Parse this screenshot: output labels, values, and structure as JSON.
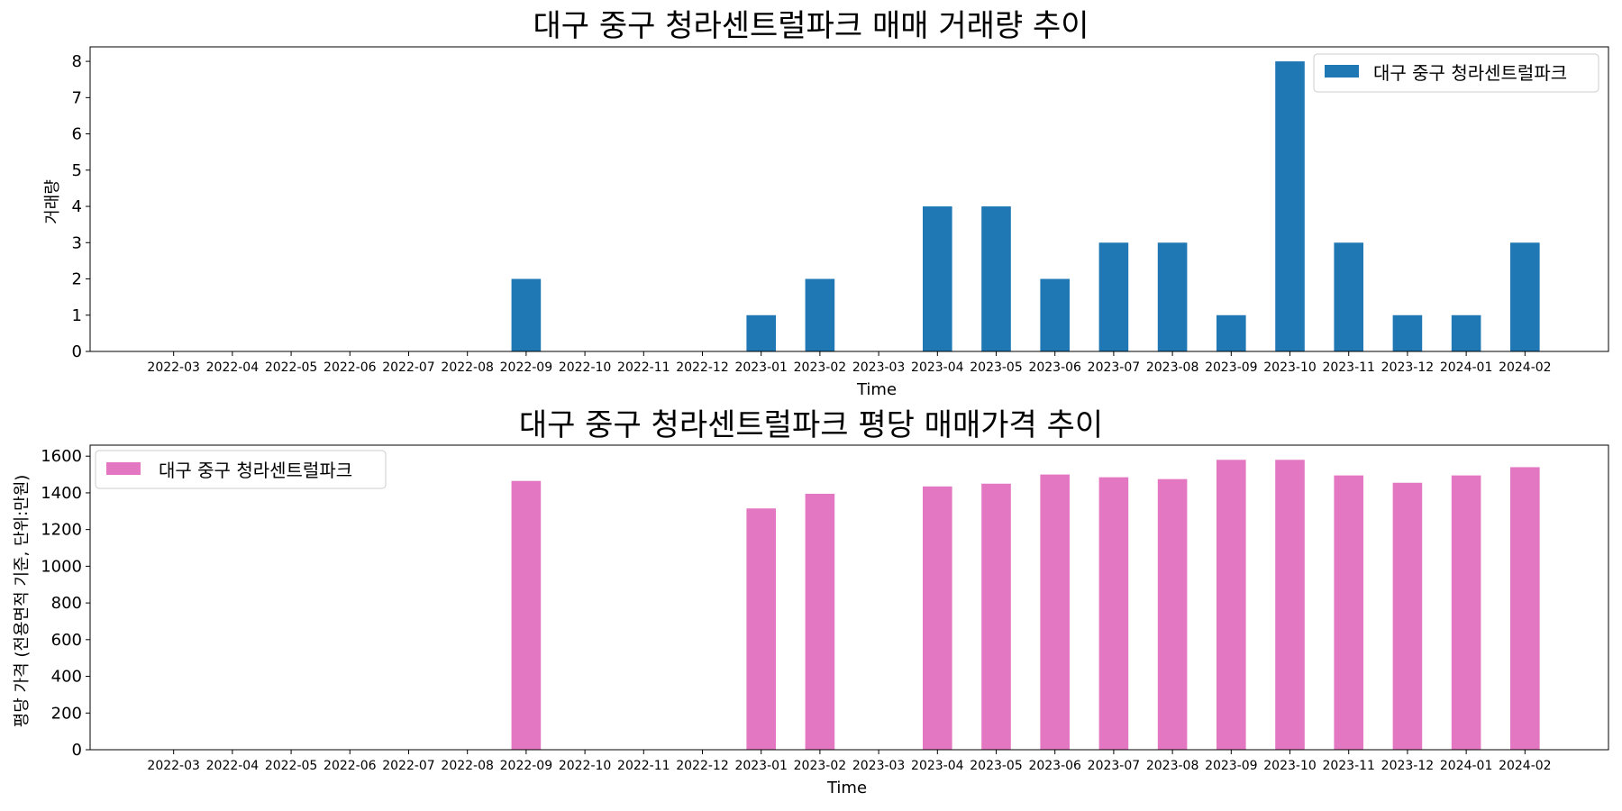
{
  "colors": {
    "volume_bar": "#1f77b4",
    "price_bar": "#e377c2",
    "axes": "#000000",
    "legend_frame": "#cccccc"
  },
  "chart_data": [
    {
      "type": "bar",
      "title": "대구 중구 청라센트럴파크 매매 거래량 추이",
      "xlabel": "Time",
      "ylabel": "거래량",
      "categories": [
        "2022-03",
        "2022-04",
        "2022-05",
        "2022-06",
        "2022-07",
        "2022-08",
        "2022-09",
        "2022-10",
        "2022-11",
        "2022-12",
        "2023-01",
        "2023-02",
        "2023-03",
        "2023-04",
        "2023-05",
        "2023-06",
        "2023-07",
        "2023-08",
        "2023-09",
        "2023-10",
        "2023-11",
        "2023-12",
        "2024-01",
        "2024-02"
      ],
      "series": [
        {
          "name": "대구 중구 청라센트럴파크",
          "values": [
            0,
            0,
            0,
            0,
            0,
            0,
            2,
            0,
            0,
            0,
            1,
            2,
            0,
            4,
            4,
            2,
            3,
            3,
            1,
            8,
            3,
            1,
            1,
            3
          ]
        }
      ],
      "ylim": [
        0,
        8.4
      ],
      "yticks": [
        0,
        1,
        2,
        3,
        4,
        5,
        6,
        7,
        8
      ],
      "legend": "top-right",
      "grid": false
    },
    {
      "type": "bar",
      "title": "대구 중구 청라센트럴파크 평당 매매가격 추이",
      "xlabel": "Time",
      "ylabel": "평당 가격 (전용면적 기준, 단위:만원)",
      "categories": [
        "2022-03",
        "2022-04",
        "2022-05",
        "2022-06",
        "2022-07",
        "2022-08",
        "2022-09",
        "2022-10",
        "2022-11",
        "2022-12",
        "2023-01",
        "2023-02",
        "2023-03",
        "2023-04",
        "2023-05",
        "2023-06",
        "2023-07",
        "2023-08",
        "2023-09",
        "2023-10",
        "2023-11",
        "2023-12",
        "2024-01",
        "2024-02"
      ],
      "series": [
        {
          "name": "대구 중구 청라센트럴파크",
          "values": [
            0,
            0,
            0,
            0,
            0,
            0,
            1465,
            0,
            0,
            0,
            1315,
            1395,
            0,
            1435,
            1450,
            1500,
            1485,
            1475,
            1580,
            1580,
            1495,
            1455,
            1495,
            1540
          ]
        }
      ],
      "ylim": [
        0,
        1660
      ],
      "yticks": [
        0,
        200,
        400,
        600,
        800,
        1000,
        1200,
        1400,
        1600
      ],
      "legend": "top-left",
      "grid": false
    }
  ]
}
